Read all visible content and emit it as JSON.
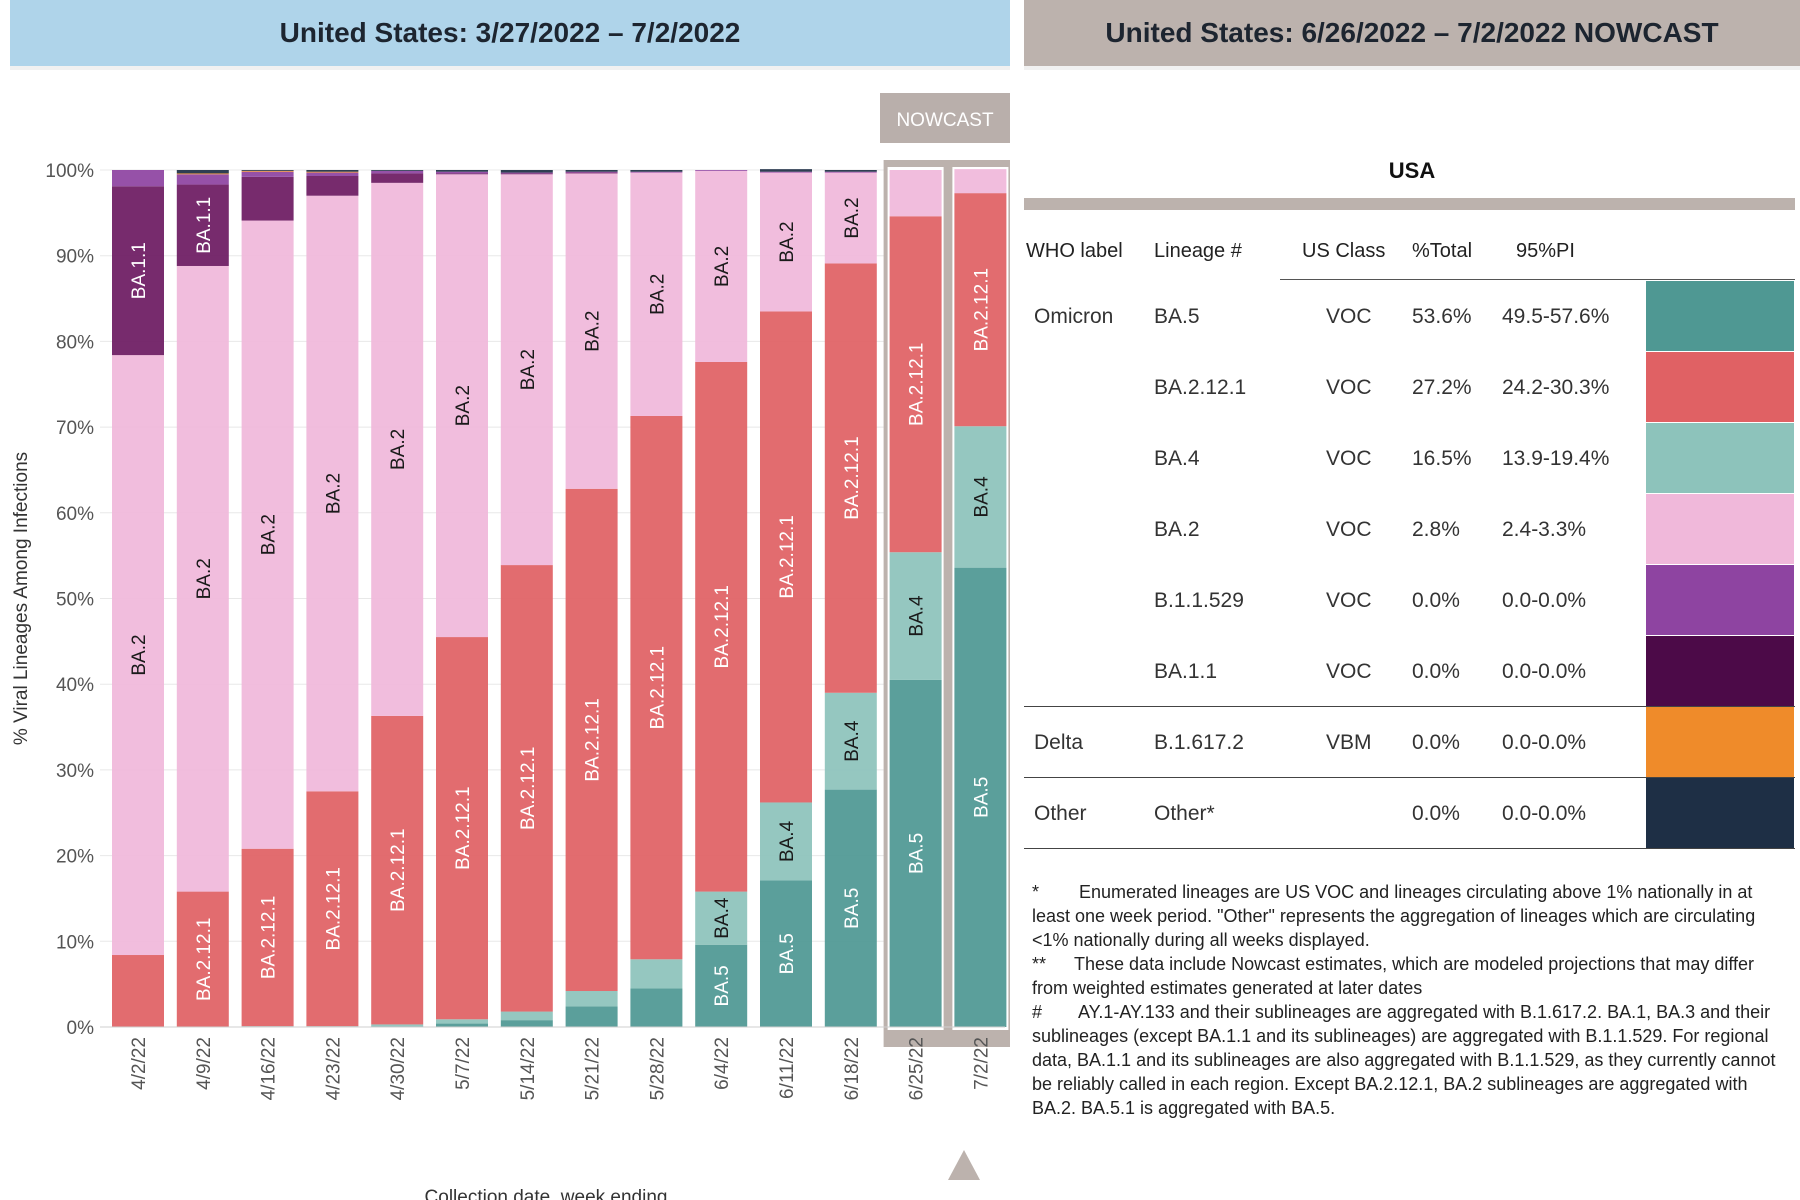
{
  "header": {
    "left_title": "United States: 3/27/2022 – 7/2/2022",
    "right_title": "United States: 6/26/2022 – 7/2/2022 NOWCAST"
  },
  "nowcast_label": "NOWCAST",
  "chart_data": {
    "type": "bar",
    "stacked": true,
    "ylabel": "% Viral Lineages Among Infections",
    "xlabel": "Collection date, week ending",
    "ylim": [
      0,
      100
    ],
    "yticks": [
      "0%",
      "10%",
      "20%",
      "30%",
      "40%",
      "50%",
      "60%",
      "70%",
      "80%",
      "90%",
      "100%"
    ],
    "grid": true,
    "categories": [
      "4/2/22",
      "4/9/22",
      "4/16/22",
      "4/23/22",
      "4/30/22",
      "5/7/22",
      "5/14/22",
      "5/21/22",
      "5/28/22",
      "6/4/22",
      "6/11/22",
      "6/18/22",
      "6/25/22",
      "7/2/22"
    ],
    "nowcast_categories": [
      "6/25/22",
      "7/2/22"
    ],
    "series": [
      {
        "name": "BA.5",
        "color": "#4f9893",
        "values": [
          0,
          0,
          0,
          0,
          0.1,
          0.4,
          0.8,
          2.4,
          4.5,
          9.6,
          17.1,
          27.7,
          40.5,
          53.6
        ]
      },
      {
        "name": "BA.4",
        "color": "#8dc3bb",
        "values": [
          0,
          0,
          0.1,
          0.1,
          0.2,
          0.5,
          1.0,
          1.8,
          3.4,
          6.2,
          9.1,
          11.3,
          14.9,
          16.5
        ]
      },
      {
        "name": "BA.2.12.1",
        "color": "#e06164",
        "values": [
          8.4,
          15.8,
          20.7,
          27.4,
          36.0,
          44.6,
          52.1,
          58.6,
          63.4,
          61.8,
          57.3,
          50.1,
          39.2,
          27.2
        ]
      },
      {
        "name": "BA.2",
        "color": "#f0b8da",
        "values": [
          70.0,
          73.0,
          73.3,
          69.5,
          62.2,
          54.0,
          45.6,
          36.8,
          28.4,
          22.3,
          16.2,
          10.6,
          5.4,
          2.8
        ]
      },
      {
        "name": "BA.1.1",
        "color": "#6d1b62",
        "values": [
          19.7,
          9.5,
          5.1,
          2.3,
          1.1,
          0.1,
          0.1,
          0.1,
          0,
          0,
          0,
          0,
          0,
          0
        ]
      },
      {
        "name": "B.1.1.529",
        "color": "#8e44a1",
        "values": [
          1.9,
          1.2,
          0.6,
          0.4,
          0.3,
          0.2,
          0.1,
          0.1,
          0.1,
          0.1,
          0.1,
          0.1,
          0,
          0
        ]
      },
      {
        "name": "B.1.617.2",
        "color": "#ef8b2a",
        "values": [
          0,
          0.1,
          0.1,
          0.1,
          0,
          0,
          0,
          0,
          0,
          0,
          0,
          0,
          0,
          0
        ]
      },
      {
        "name": "Other",
        "color": "#1e2f45",
        "values": [
          0,
          0.4,
          0.1,
          0.2,
          0.1,
          0.2,
          0.3,
          0.2,
          0.2,
          0,
          0.3,
          0.2,
          0,
          0
        ]
      }
    ],
    "segment_labels": [
      [
        null,
        null,
        null,
        "BA.2",
        "BA.1.1",
        null,
        null,
        null
      ],
      [
        null,
        null,
        "BA.2.12.1",
        "BA.2",
        "BA.1.1",
        null,
        null,
        null
      ],
      [
        null,
        null,
        "BA.2.12.1",
        "BA.2",
        null,
        null,
        null,
        null
      ],
      [
        null,
        null,
        "BA.2.12.1",
        "BA.2",
        null,
        null,
        null,
        null
      ],
      [
        null,
        null,
        "BA.2.12.1",
        "BA.2",
        null,
        null,
        null,
        null
      ],
      [
        null,
        null,
        "BA.2.12.1",
        "BA.2",
        null,
        null,
        null,
        null
      ],
      [
        null,
        null,
        "BA.2.12.1",
        "BA.2",
        null,
        null,
        null,
        null
      ],
      [
        null,
        null,
        "BA.2.12.1",
        "BA.2",
        null,
        null,
        null,
        null
      ],
      [
        null,
        null,
        "BA.2.12.1",
        "BA.2",
        null,
        null,
        null,
        null
      ],
      [
        "BA.5",
        "BA.4",
        "BA.2.12.1",
        "BA.2",
        null,
        null,
        null,
        null
      ],
      [
        "BA.5",
        "BA.4",
        "BA.2.12.1",
        "BA.2",
        null,
        null,
        null,
        null
      ],
      [
        "BA.5",
        "BA.4",
        "BA.2.12.1",
        "BA.2",
        null,
        null,
        null,
        null
      ],
      [
        "BA.5",
        "BA.4",
        "BA.2.12.1",
        null,
        null,
        null,
        null,
        null
      ],
      [
        "BA.5",
        "BA.4",
        "BA.2.12.1",
        null,
        null,
        null,
        null,
        null
      ]
    ]
  },
  "table": {
    "title": "USA",
    "headers": {
      "who": "WHO label",
      "lineage": "Lineage #",
      "class": "US Class",
      "total": "%Total",
      "pi": "95%PI"
    },
    "rows": [
      {
        "who": "Omicron",
        "lineage": "BA.5",
        "class": "VOC",
        "total": "53.6%",
        "pi": "49.5-57.6%",
        "color": "#4f9893"
      },
      {
        "who": "",
        "lineage": "BA.2.12.1",
        "class": "VOC",
        "total": "27.2%",
        "pi": "24.2-30.3%",
        "color": "#e06164"
      },
      {
        "who": "",
        "lineage": "BA.4",
        "class": "VOC",
        "total": "16.5%",
        "pi": "13.9-19.4%",
        "color": "#8dc3bb"
      },
      {
        "who": "",
        "lineage": "BA.2",
        "class": "VOC",
        "total": "2.8%",
        "pi": "2.4-3.3%",
        "color": "#f0b8da"
      },
      {
        "who": "",
        "lineage": "B.1.1.529",
        "class": "VOC",
        "total": "0.0%",
        "pi": "0.0-0.0%",
        "color": "#8e44a1"
      },
      {
        "who": "",
        "lineage": "BA.1.1",
        "class": "VOC",
        "total": "0.0%",
        "pi": "0.0-0.0%",
        "color": "#4c0a48"
      },
      {
        "who": "Delta",
        "lineage": "B.1.617.2",
        "class": "VBM",
        "total": "0.0%",
        "pi": "0.0-0.0%",
        "color": "#ef8b2a"
      },
      {
        "who": "Other",
        "lineage": "Other*",
        "class": "",
        "total": "0.0%",
        "pi": "0.0-0.0%",
        "color": "#1e2f45"
      }
    ]
  },
  "footnotes": {
    "f1_mark": "*",
    "f1_text": "Enumerated lineages are US VOC and lineages circulating above 1% nationally in at least one week period. \"Other\" represents the aggregation of lineages which are circulating <1% nationally during all weeks displayed.",
    "f2_mark": "**",
    "f2_text": "These data include Nowcast estimates, which are modeled projections that may differ from weighted estimates generated at later dates",
    "f3_mark": "#",
    "f3_text": "AY.1-AY.133 and their sublineages are aggregated with B.1.617.2. BA.1, BA.3 and their sublineages (except BA.1.1 and its sublineages) are aggregated with B.1.1.529. For regional data, BA.1.1 and its sublineages are also aggregated with B.1.1.529, as they currently cannot be reliably called in each region. Except BA.2.12.1, BA.2 sublineages are aggregated with BA.2. BA.5.1 is aggregated with BA.5."
  }
}
